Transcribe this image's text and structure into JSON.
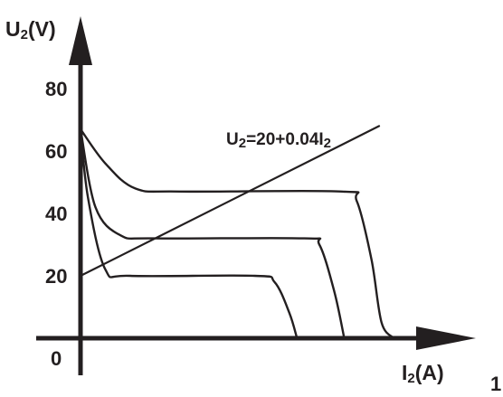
{
  "chart_data": {
    "type": "line",
    "ylabel": {
      "main": "U",
      "sub": "2",
      "unit": "(V)"
    },
    "xlabel": {
      "main": "I",
      "sub": "2",
      "unit": "(A)"
    },
    "origin_label": "0",
    "yticks": [
      "20",
      "40",
      "60",
      "80"
    ],
    "ytick_values": [
      20,
      40,
      60,
      80
    ],
    "ylim": [
      0,
      100
    ],
    "load_line": {
      "label": {
        "p1": "U",
        "s1": "2",
        "p2": "=20+0.04I",
        "s2": "2"
      },
      "intercept": 20,
      "slope": 0.04,
      "x_range": [
        0,
        1200
      ]
    },
    "series": [
      {
        "points": [
          [
            0,
            67
          ],
          [
            30,
            45
          ],
          [
            100,
            22
          ],
          [
            200,
            20
          ],
          [
            700,
            20
          ],
          [
            780,
            18
          ],
          [
            840,
            8
          ],
          [
            870,
            0
          ]
        ]
      },
      {
        "points": [
          [
            0,
            67
          ],
          [
            60,
            42
          ],
          [
            160,
            33
          ],
          [
            300,
            32
          ],
          [
            900,
            32
          ],
          [
            960,
            30
          ],
          [
            1020,
            15
          ],
          [
            1060,
            0
          ]
        ]
      },
      {
        "points": [
          [
            0,
            67
          ],
          [
            100,
            56
          ],
          [
            220,
            48
          ],
          [
            400,
            47
          ],
          [
            1050,
            47
          ],
          [
            1110,
            44
          ],
          [
            1170,
            25
          ],
          [
            1210,
            5
          ],
          [
            1260,
            0
          ]
        ]
      }
    ],
    "corner_text": "1"
  }
}
